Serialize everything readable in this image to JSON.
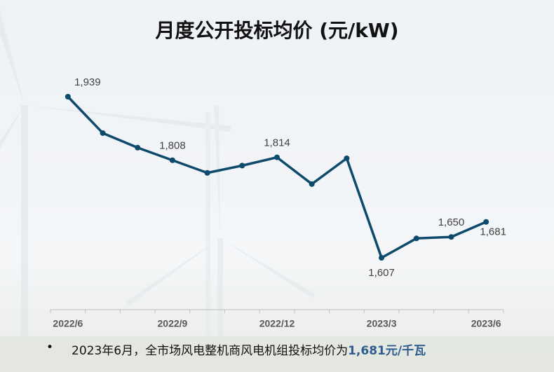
{
  "chart_data": {
    "type": "line",
    "title": "月度公开投标均价 (元/kW)",
    "categories": [
      "2022/6",
      null,
      null,
      "2022/9",
      null,
      null,
      "2022/12",
      null,
      null,
      "2023/3",
      null,
      null,
      "2023/6"
    ],
    "series": [
      {
        "name": "月度公开投标均价",
        "color": "#0d4a6b",
        "values": [
          1939,
          1864,
          1834,
          1808,
          1782,
          1797,
          1814,
          1759,
          1812,
          1607,
          1647,
          1650,
          1681
        ],
        "value_labels": [
          "1,939",
          null,
          null,
          "1,808",
          null,
          null,
          "1,814",
          null,
          null,
          "1,607",
          null,
          "1,650",
          "1,681"
        ]
      }
    ],
    "footnote": {
      "text": "2023年6月，全市场风电整机商风电机组投标均价为",
      "highlight": "1,681元/千瓦"
    }
  }
}
